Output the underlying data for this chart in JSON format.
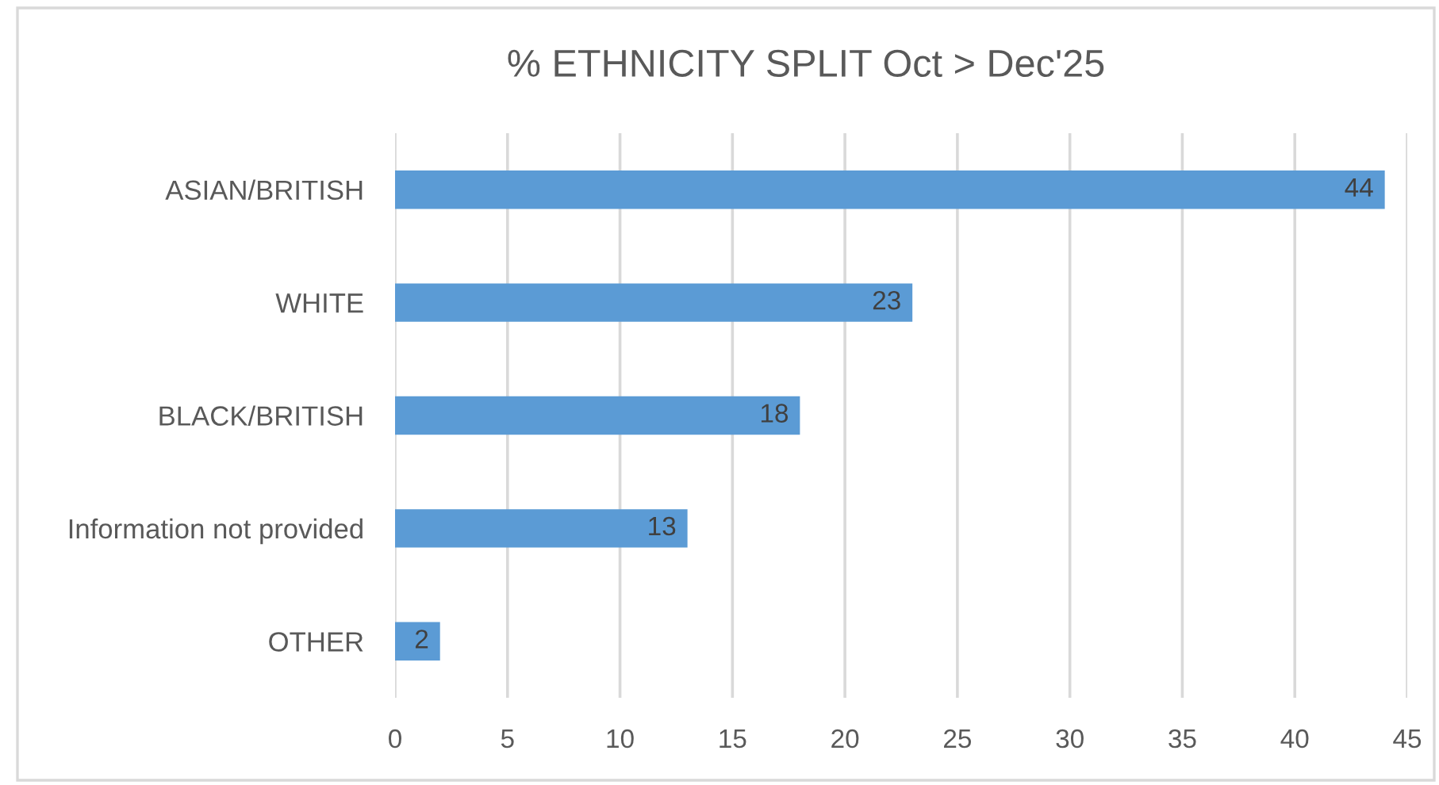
{
  "chart_data": {
    "type": "bar",
    "orientation": "horizontal",
    "title": "% ETHNICITY SPLIT Oct > Dec'25",
    "categories": [
      "ASIAN/BRITISH",
      "WHITE",
      "BLACK/BRITISH",
      "Information not provided",
      "OTHER"
    ],
    "values": [
      44,
      23,
      18,
      13,
      2
    ],
    "color": "#5b9bd5",
    "xlim": [
      0,
      45
    ],
    "xticks": [
      0,
      5,
      10,
      15,
      20,
      25,
      30,
      35,
      40,
      45
    ],
    "grid": "x",
    "data_labels": true
  }
}
